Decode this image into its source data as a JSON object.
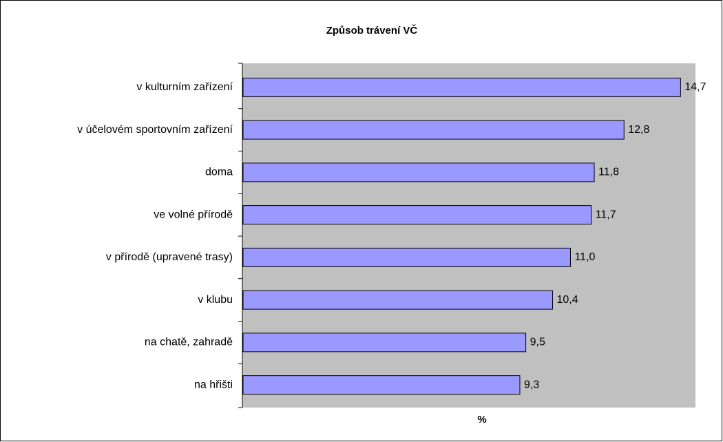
{
  "chart_data": {
    "type": "bar",
    "orientation": "horizontal",
    "title": "Způsob trávení VČ",
    "x_label": "%",
    "categories": [
      "v kulturním zařízení",
      "v účelovém sportovním zařízení",
      "doma",
      "ve volné přírodě",
      "v přírodě (upravené trasy)",
      "v klubu",
      "na chatě, zahradě",
      "na hřišti"
    ],
    "values": [
      14.7,
      12.8,
      11.8,
      11.7,
      11.0,
      10.4,
      9.5,
      9.3
    ],
    "value_labels": [
      "14,7",
      "12,8",
      "11,8",
      "11,7",
      "11,0",
      "10,4",
      "9,5",
      "9,3"
    ],
    "color": "#9999ff",
    "xlim": [
      0,
      15.2
    ]
  }
}
